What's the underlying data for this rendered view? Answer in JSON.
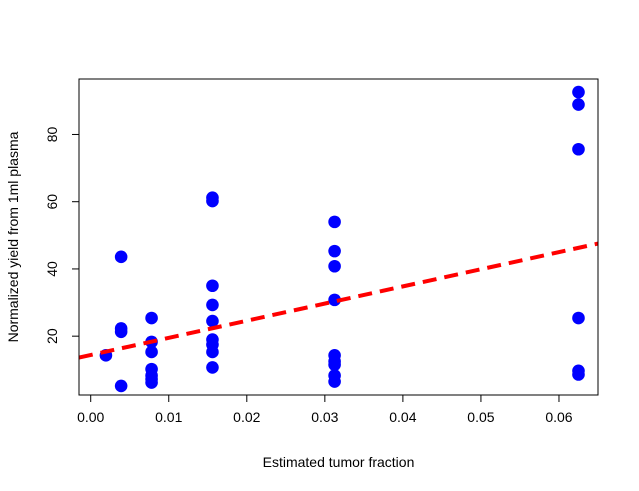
{
  "chart_data": {
    "type": "scatter",
    "title": "",
    "xlabel": "Estimated tumor fraction",
    "ylabel": "Normalized yield from 1ml plasma",
    "xlim": [
      -0.0015,
      0.065
    ],
    "ylim": [
      2.5,
      96.5
    ],
    "x_ticks": [
      "0.00",
      "0.01",
      "0.02",
      "0.03",
      "0.04",
      "0.05",
      "0.06"
    ],
    "x_tick_values": [
      0,
      0.01,
      0.02,
      0.03,
      0.04,
      0.05,
      0.06
    ],
    "y_ticks": [
      "20",
      "40",
      "60",
      "80"
    ],
    "y_tick_values": [
      20,
      40,
      60,
      80
    ],
    "grid": false,
    "series": [
      {
        "kind": "points",
        "color": "#0000ff",
        "points": [
          [
            0.00195,
            14.3
          ],
          [
            0.0039,
            43.6
          ],
          [
            0.0039,
            22.3
          ],
          [
            0.0039,
            21.3
          ],
          [
            0.0039,
            5.2
          ],
          [
            0.0078,
            25.4
          ],
          [
            0.0078,
            18.3
          ],
          [
            0.0078,
            15.3
          ],
          [
            0.0078,
            10.2
          ],
          [
            0.0078,
            8.3
          ],
          [
            0.0078,
            7.2
          ],
          [
            0.0078,
            6.2
          ],
          [
            0.0156,
            61.2
          ],
          [
            0.0156,
            60.2
          ],
          [
            0.0156,
            35.0
          ],
          [
            0.0156,
            29.3
          ],
          [
            0.0156,
            24.5
          ],
          [
            0.0156,
            19.0
          ],
          [
            0.0156,
            17.5
          ],
          [
            0.0156,
            15.3
          ],
          [
            0.0156,
            10.7
          ],
          [
            0.03125,
            54.0
          ],
          [
            0.03125,
            45.3
          ],
          [
            0.03125,
            40.8
          ],
          [
            0.03125,
            30.8
          ],
          [
            0.03125,
            14.3
          ],
          [
            0.03125,
            12.5
          ],
          [
            0.03125,
            11.5
          ],
          [
            0.03125,
            8.3
          ],
          [
            0.03125,
            6.5
          ],
          [
            0.0625,
            92.6
          ],
          [
            0.0625,
            88.9
          ],
          [
            0.0625,
            75.6
          ],
          [
            0.0625,
            25.4
          ],
          [
            0.0625,
            9.7
          ],
          [
            0.0625,
            8.6
          ]
        ]
      },
      {
        "kind": "line",
        "style": "dashed",
        "color": "#ff0000",
        "intercept": 14.4,
        "slope": 510
      }
    ]
  }
}
